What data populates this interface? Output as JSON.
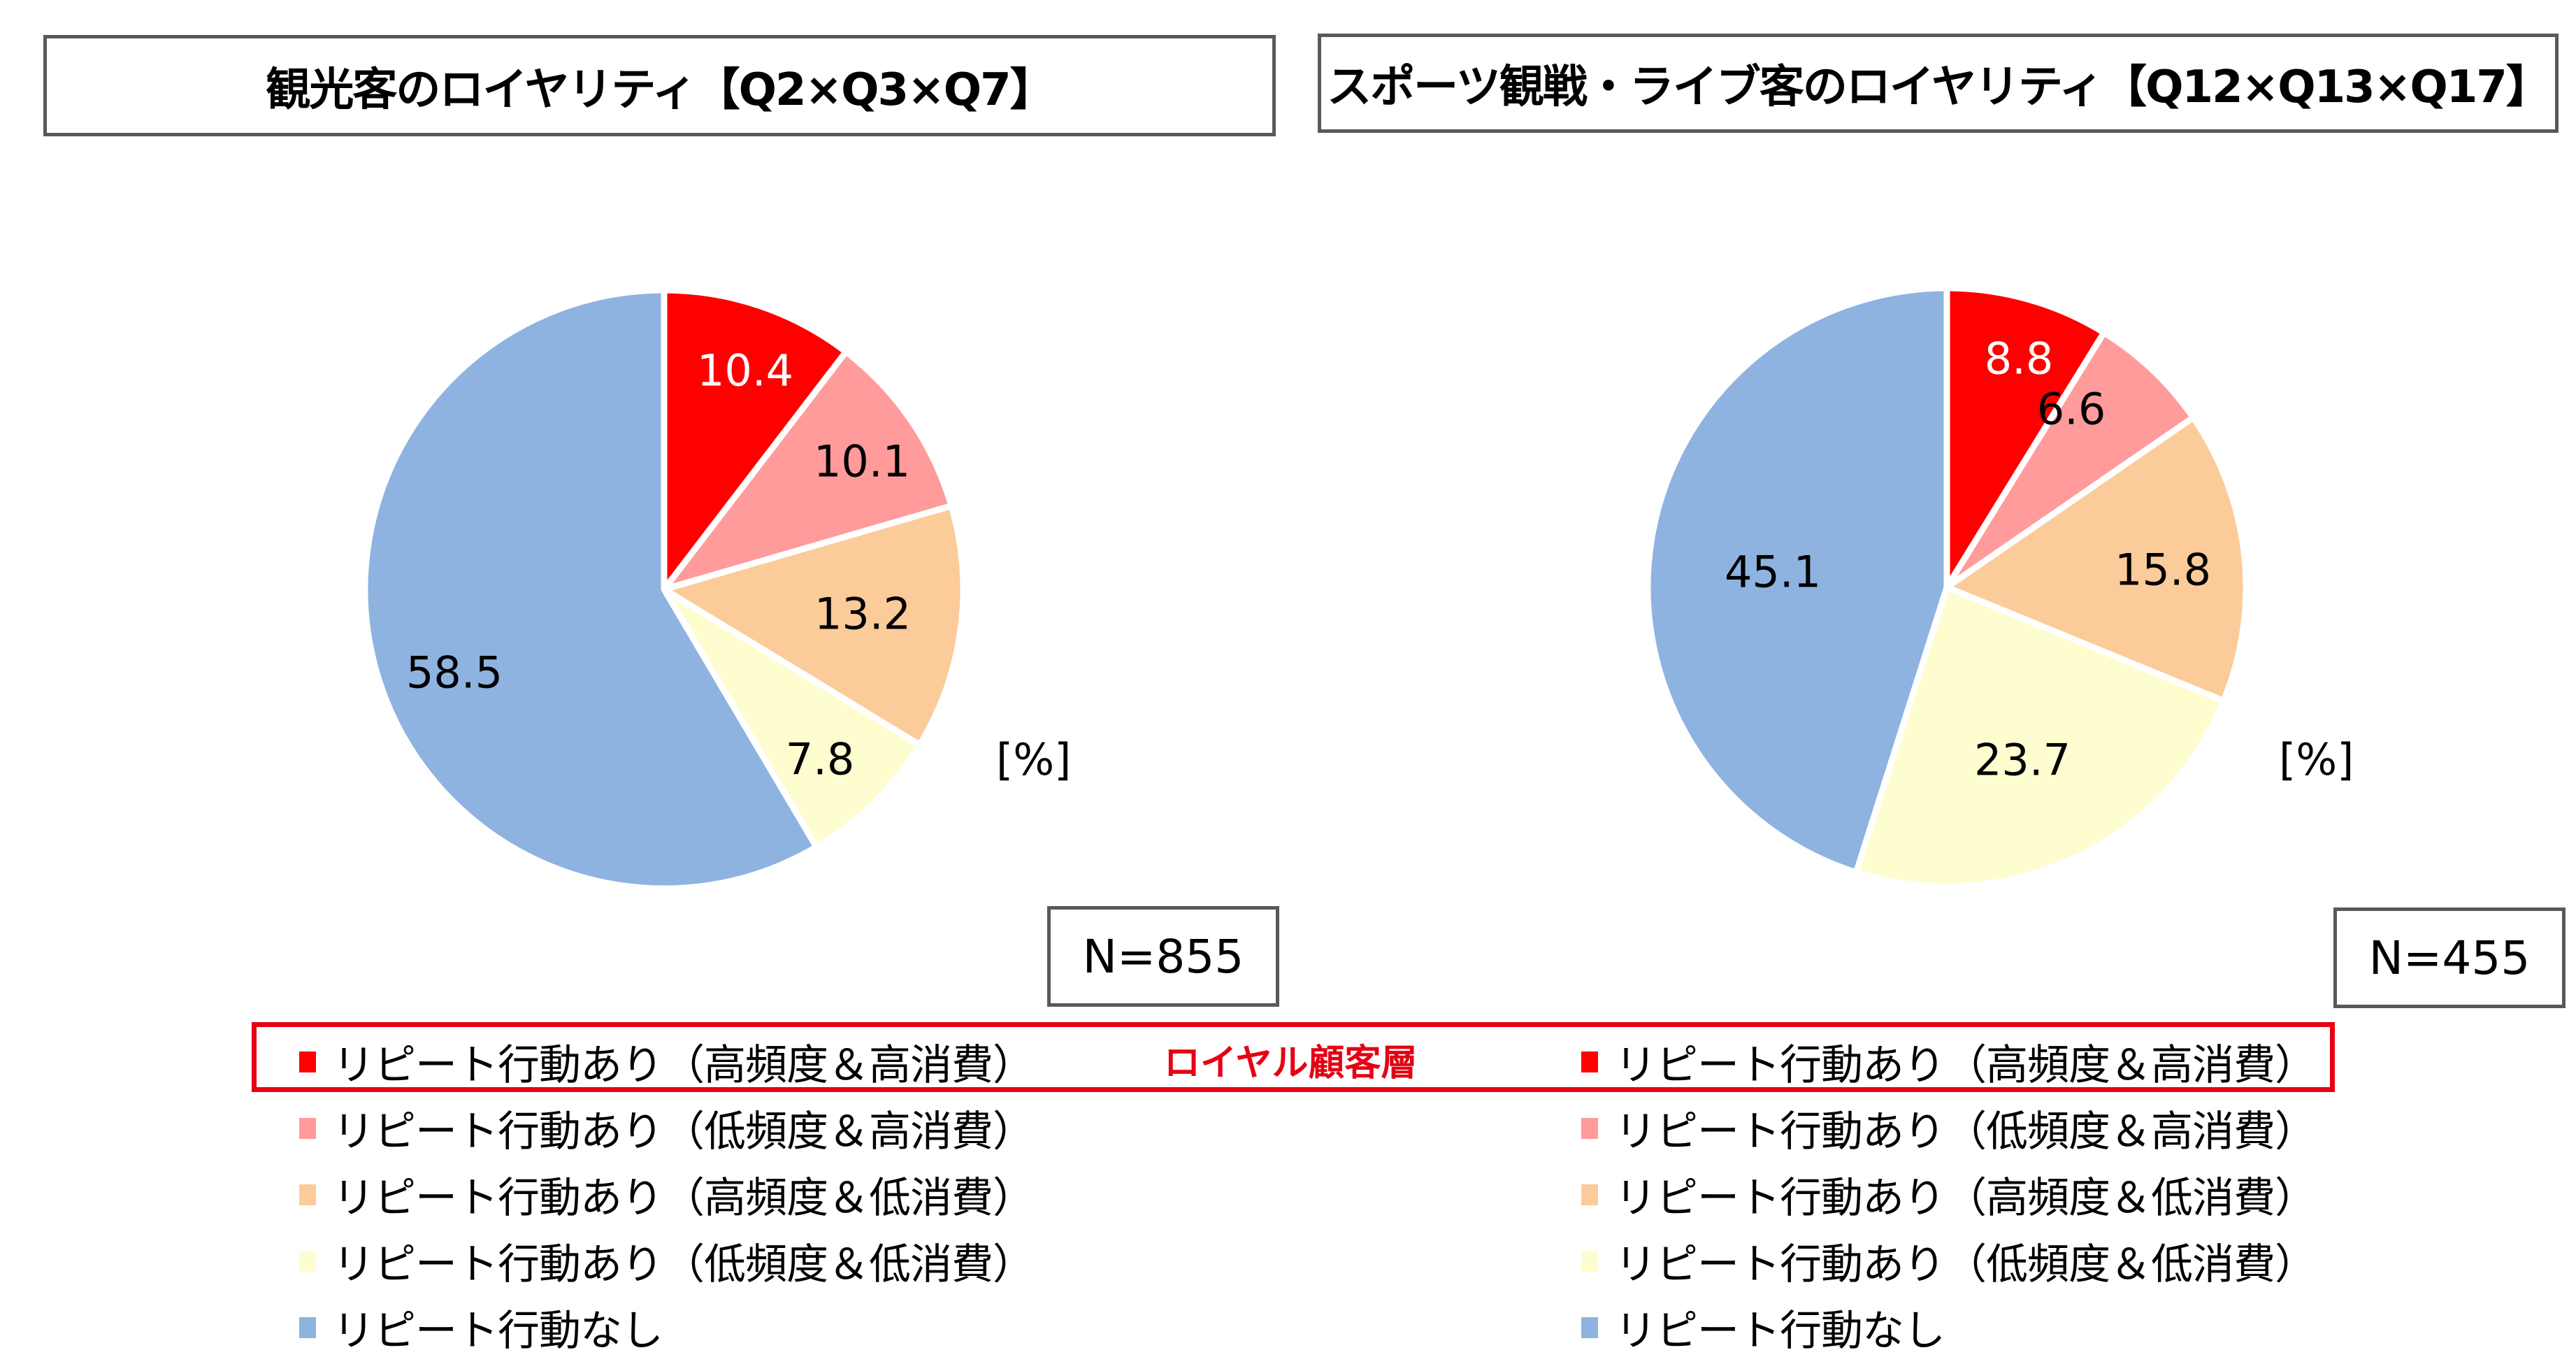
{
  "charts": [
    {
      "title": "観光客のロイヤリティ【Q2×Q3×Q7】",
      "n_label": "N=855",
      "unit": "[%]",
      "labels_text": [
        "10.4",
        "10.1",
        "13.2",
        "7.8",
        "58.5"
      ]
    },
    {
      "title": "スポーツ観戦・ライブ客のロイヤリティ【Q12×Q13×Q17】",
      "n_label": "N=455",
      "unit": "[%]",
      "labels_text": [
        "8.8",
        "6.6",
        "15.8",
        "23.7",
        "45.1"
      ]
    }
  ],
  "loyal_segment_label": "ロイヤル顧客層",
  "legend": {
    "items": [
      {
        "label": "リピート行動あり（高頻度＆高消費）",
        "color": "#FF0000"
      },
      {
        "label": "リピート行動あり（低頻度＆高消費）",
        "color": "#FF9B9B"
      },
      {
        "label": "リピート行動あり（高頻度＆低消費）",
        "color": "#FCCB9A"
      },
      {
        "label": "リピート行動あり（低頻度＆低消費）",
        "color": "#FEFDD0"
      },
      {
        "label": "リピート行動なし",
        "color": "#8EB3E0"
      }
    ]
  },
  "chart_data": [
    {
      "type": "pie",
      "title": "観光客のロイヤリティ【Q2×Q3×Q7】",
      "categories": [
        "リピート行動あり（高頻度＆高消費）",
        "リピート行動あり（低頻度＆高消費）",
        "リピート行動あり（高頻度＆低消費）",
        "リピート行動あり（低頻度＆低消費）",
        "リピート行動なし"
      ],
      "values": [
        10.4,
        10.1,
        13.2,
        7.8,
        58.5
      ],
      "colors": [
        "#FF0000",
        "#FF9B9B",
        "#FCCB9A",
        "#FEFDD0",
        "#8EB3E0"
      ],
      "unit": "%",
      "n": 855,
      "start_angle_deg": 0,
      "direction": "clockwise",
      "legend_position": "bottom"
    },
    {
      "type": "pie",
      "title": "スポーツ観戦・ライブ客のロイヤリティ【Q12×Q13×Q17】",
      "categories": [
        "リピート行動あり（高頻度＆高消費）",
        "リピート行動あり（低頻度＆高消費）",
        "リピート行動あり（高頻度＆低消費）",
        "リピート行動あり（低頻度＆低消費）",
        "リピート行動なし"
      ],
      "values": [
        8.8,
        6.6,
        15.8,
        23.7,
        45.1
      ],
      "colors": [
        "#FF0000",
        "#FF9B9B",
        "#FCCB9A",
        "#FEFDD0",
        "#8EB3E0"
      ],
      "unit": "%",
      "n": 455,
      "start_angle_deg": 0,
      "direction": "clockwise",
      "legend_position": "bottom"
    }
  ]
}
